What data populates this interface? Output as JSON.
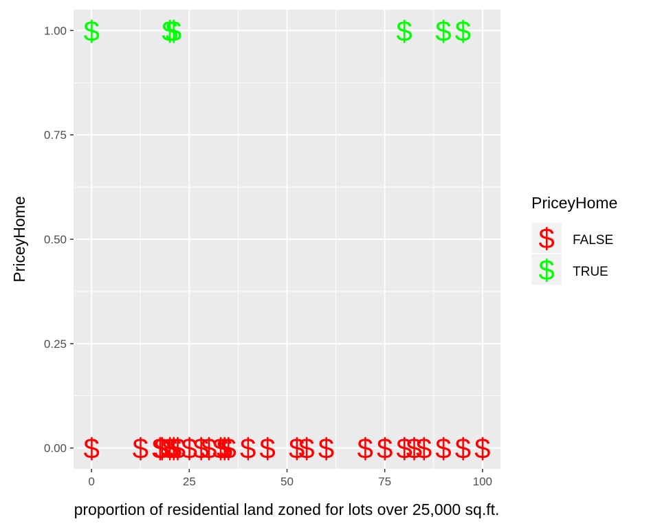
{
  "chart_data": {
    "type": "scatter",
    "title": "",
    "xlabel": "proportion of residential land zoned for lots over 25,000 sq.ft.",
    "ylabel": "PriceyHome",
    "xlim": [
      -4.6,
      104.6
    ],
    "ylim": [
      -0.05,
      1.05
    ],
    "x_ticks": [
      0,
      25,
      50,
      75,
      100
    ],
    "x_tick_labels": [
      "0",
      "25",
      "50",
      "75",
      "100"
    ],
    "y_ticks": [
      0,
      0.25,
      0.5,
      0.75,
      1
    ],
    "y_tick_labels": [
      "0.00",
      "0.25",
      "0.50",
      "0.75",
      "1.00"
    ],
    "grid": true,
    "marker": "$",
    "legend": {
      "title": "PriceyHome",
      "position": "right",
      "entries": [
        {
          "label": "FALSE",
          "color": "#ff0000"
        },
        {
          "label": "TRUE",
          "color": "#00ff00"
        }
      ]
    },
    "series": [
      {
        "name": "FALSE",
        "color": "#ff0000",
        "y": 0,
        "x": [
          0,
          12.5,
          17.5,
          18,
          20,
          21,
          22,
          25,
          28,
          30,
          33,
          34,
          35,
          40,
          45,
          52.5,
          55,
          60,
          70,
          75,
          80,
          82.5,
          85,
          90,
          95,
          100
        ]
      },
      {
        "name": "TRUE",
        "color": "#00ff00",
        "y": 1,
        "x": [
          0,
          20,
          21,
          80,
          90,
          95
        ]
      }
    ]
  },
  "colors": {
    "panel_background": "#ebebeb",
    "grid_major": "#ffffff",
    "tick_text": "#4d4d4d"
  }
}
